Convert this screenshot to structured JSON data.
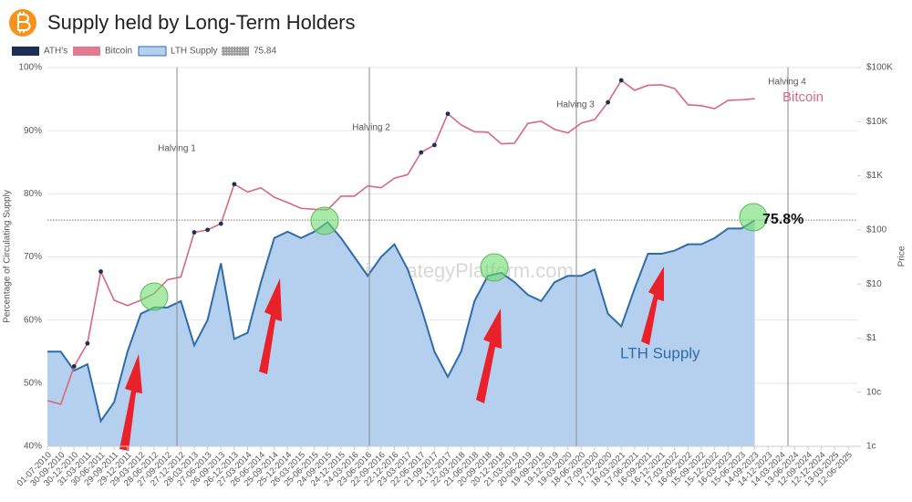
{
  "chart_data": {
    "type": "line",
    "title": "Supply held by Long-Term Holders",
    "y_label": "Percentage of Circulating Supply",
    "y2_label": "Price",
    "categories": [
      "01-07-2010",
      "30-09-2010",
      "30-12-2010",
      "31-03-2011",
      "30-06-2011",
      "29-09-2011",
      "29-12-2011",
      "29-03-2012",
      "28-06-2012",
      "27-09-2012",
      "27-12-2012",
      "28-03-2013",
      "27-06-2013",
      "26-09-2013",
      "26-12-2013",
      "27-03-2014",
      "26-06-2014",
      "25-09-2014",
      "25-12-2014",
      "26-03-2015",
      "25-06-2015",
      "24-09-2015",
      "24-12-2015",
      "24-03-2016",
      "23-06-2016",
      "22-09-2016",
      "22-12-2016",
      "23-03-2017",
      "22-06-2017",
      "21-09-2017",
      "21-12-2017",
      "22-03-2018",
      "21-06-2018",
      "20-09-2018",
      "20-12-2018",
      "21-03-2019",
      "20-06-2019",
      "19-09-2019",
      "19-12-2019",
      "19-03-2020",
      "18-06-2020",
      "17-09-2020",
      "17-12-2020",
      "18-03-2021",
      "17-06-2021",
      "16-09-2021",
      "16-12-2021",
      "17-03-2022",
      "16-06-2022",
      "15-09-2022",
      "15-12-2022",
      "16-03-2023",
      "15-06-2023",
      "14-09-2023",
      "14-12-2023",
      "14-03-2024",
      "13-06-2024",
      "12-09-2024",
      "12-12-2024",
      "13-03-2025",
      "12-06-2025"
    ],
    "series": [
      {
        "name": "ATH's",
        "color": "#1b2f57",
        "mark": "dots",
        "axis": "y2",
        "values": [
          null,
          null,
          0.3,
          0.8,
          17,
          null,
          null,
          null,
          null,
          null,
          null,
          90,
          100,
          130,
          700,
          null,
          null,
          null,
          null,
          null,
          null,
          null,
          null,
          null,
          null,
          null,
          null,
          null,
          2700,
          3700,
          14000,
          null,
          null,
          null,
          null,
          null,
          null,
          null,
          null,
          null,
          null,
          null,
          22800,
          58000,
          null,
          null,
          null,
          null,
          null,
          null,
          null,
          null,
          null,
          null,
          null,
          null,
          null,
          null,
          null,
          null,
          null
        ]
      },
      {
        "name": "Bitcoin",
        "color": "#d9687f",
        "mark": "line",
        "axis": "y2",
        "values": [
          0.07,
          0.06,
          0.3,
          0.8,
          17,
          5,
          4,
          5,
          6.7,
          12,
          13.5,
          90,
          100,
          130,
          700,
          500,
          600,
          400,
          320,
          250,
          240,
          235,
          420,
          420,
          650,
          600,
          900,
          1050,
          2700,
          3700,
          14000,
          8700,
          6500,
          6400,
          3900,
          4000,
          9300,
          10200,
          7200,
          6200,
          9400,
          10900,
          22800,
          58000,
          38000,
          47000,
          48000,
          41000,
          20500,
          19700,
          17400,
          24800,
          25300,
          26600,
          null,
          null,
          null,
          null,
          null,
          null,
          null
        ]
      },
      {
        "name": "LTH Supply",
        "color": "#2e6da8",
        "fill": "#b5cfee",
        "mark": "area",
        "values": [
          55,
          55,
          52,
          53,
          44,
          47,
          55,
          61,
          62,
          62,
          63,
          56,
          60,
          69,
          57,
          58,
          66,
          73,
          74,
          73,
          74,
          75.5,
          73,
          70,
          67,
          70,
          72,
          68,
          62,
          55,
          51,
          55,
          63,
          67,
          67.5,
          66,
          64,
          63,
          66,
          67,
          67,
          68,
          61,
          59,
          65,
          70.5,
          70.5,
          71,
          72,
          72,
          73,
          74.5,
          74.5,
          75.8,
          null,
          null,
          null,
          null,
          null,
          null,
          null
        ]
      }
    ],
    "reference_line": 75.84,
    "ylim": [
      40,
      100
    ],
    "yticks": [
      {
        "value": 40,
        "label": "40%"
      },
      {
        "value": 50,
        "label": "50%"
      },
      {
        "value": 60,
        "label": "60%"
      },
      {
        "value": 70,
        "label": "70%"
      },
      {
        "value": 80,
        "label": "80%"
      },
      {
        "value": 90,
        "label": "90%"
      },
      {
        "value": 100,
        "label": "100%"
      }
    ],
    "y2lim": [
      0.01,
      100000
    ],
    "y2_log": true,
    "y2ticks": [
      {
        "value": 0.01,
        "label": "1c"
      },
      {
        "value": 0.1,
        "label": "10c"
      },
      {
        "value": 1,
        "label": "$1"
      },
      {
        "value": 10,
        "label": "$10"
      },
      {
        "value": 100,
        "label": "$100"
      },
      {
        "value": 1000,
        "label": "$1K"
      },
      {
        "value": 10000,
        "label": "$10K"
      },
      {
        "value": 100000,
        "label": "$100K"
      }
    ],
    "grid": true,
    "annotations": {
      "halvings": [
        "Halving 1",
        "Halving 2",
        "Halving 3",
        "Halving 4"
      ],
      "bitcoin_label": "Bitcoin",
      "lth_label": "LTH Supply",
      "current_value": "75.8%",
      "watermark": "BitcoinStrategyPlatform.com"
    }
  }
}
